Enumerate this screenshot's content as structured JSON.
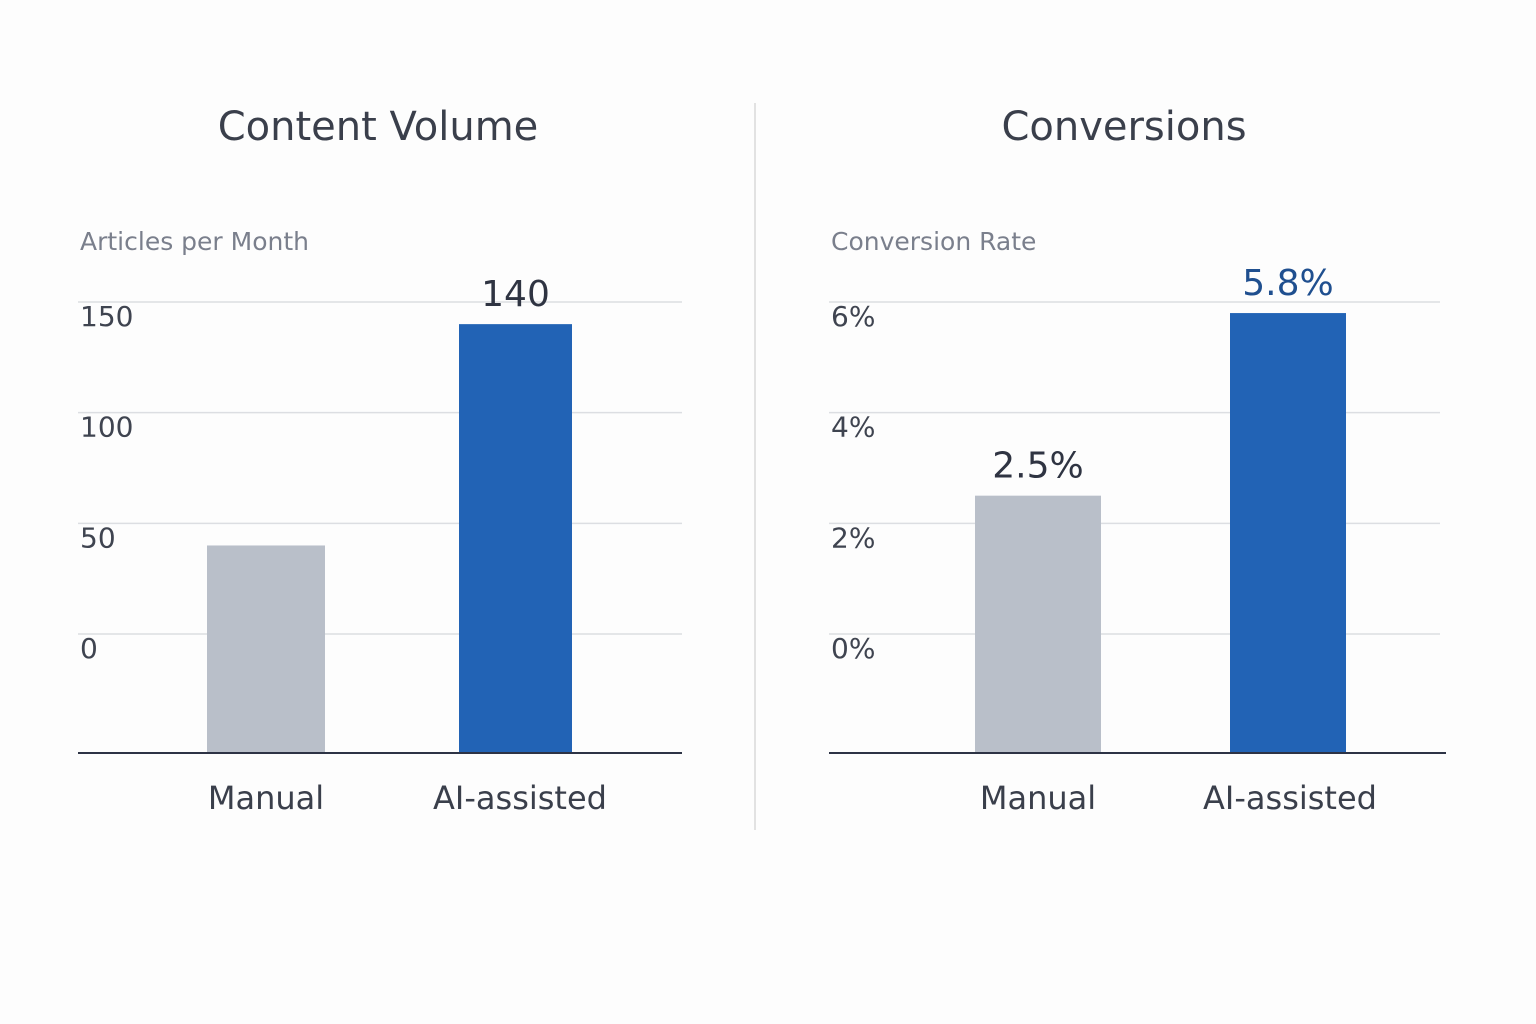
{
  "chart_data": [
    {
      "type": "bar",
      "title": "Content Volume",
      "ylabel": "Articles per Month",
      "categories": [
        "Manual",
        "AI-assisted"
      ],
      "values": [
        40,
        140
      ],
      "data_labels": [
        "",
        "140"
      ],
      "yticks": [
        0,
        50,
        100,
        150
      ],
      "ytick_labels": [
        "0",
        "50",
        "100",
        "150"
      ],
      "ylim": [
        0,
        150
      ],
      "grid": true,
      "colors": [
        "#b9bfc9",
        "#2263b5"
      ],
      "label_color": "#2f3442"
    },
    {
      "type": "bar",
      "title": "Conversions",
      "ylabel": "Conversion Rate",
      "categories": [
        "Manual",
        "AI-assisted"
      ],
      "values": [
        2.5,
        5.8
      ],
      "data_labels": [
        "2.5%",
        "5.8%"
      ],
      "yticks": [
        0,
        2,
        4,
        6
      ],
      "ytick_labels": [
        "0%",
        "2%",
        "4%",
        "6%"
      ],
      "ylim": [
        0,
        6
      ],
      "grid": true,
      "colors": [
        "#b9bfc9",
        "#2263b5"
      ],
      "label_color": "#1f4f8f"
    }
  ]
}
